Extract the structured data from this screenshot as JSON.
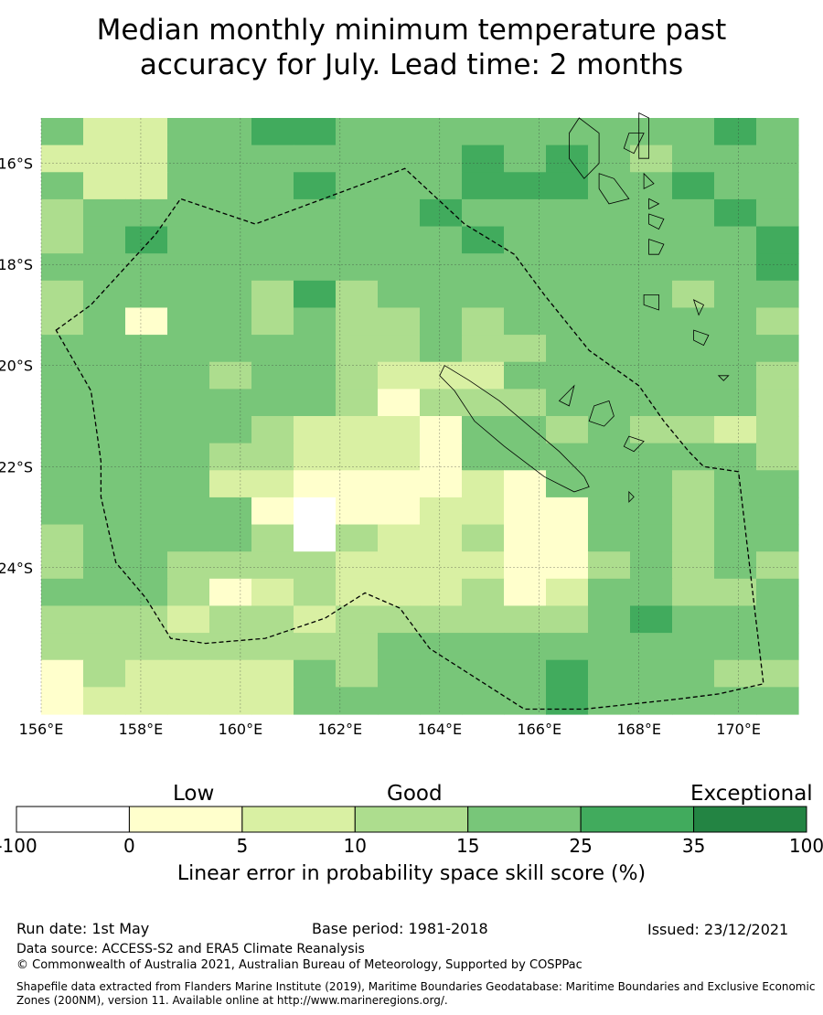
{
  "title_line1": "Median monthly minimum temperature past",
  "title_line2": "accuracy for July. Lead time: 2 months",
  "map": {
    "lon_range": [
      156,
      171.2
    ],
    "lat_range": [
      -26.9,
      -15.1
    ],
    "lon_ticks": [
      156,
      158,
      160,
      162,
      164,
      166,
      168,
      170
    ],
    "lon_tick_labels": [
      "156°E",
      "158°E",
      "160°E",
      "162°E",
      "164°E",
      "166°E",
      "168°E",
      "170°E"
    ],
    "lat_ticks": [
      -16,
      -18,
      -20,
      -22,
      -24
    ],
    "lat_tick_labels": [
      "16°S",
      "18°S",
      "20°S",
      "22°S",
      "24°S"
    ],
    "grid": true,
    "class_colors": [
      "#ffffff",
      "#ffffcc",
      "#d9f0a3",
      "#addd8e",
      "#78c679",
      "#41ab5d",
      "#238443"
    ],
    "cell_grid_note": "rows north to south, columns west to east; values are skill class index 0-6",
    "cell_classes": [
      [
        4,
        2,
        2,
        4,
        4,
        5,
        5,
        4,
        4,
        4,
        4,
        4,
        4,
        4,
        4,
        4,
        5,
        4
      ],
      [
        2,
        2,
        2,
        4,
        4,
        4,
        4,
        4,
        4,
        4,
        5,
        4,
        5,
        4,
        3,
        4,
        4,
        4
      ],
      [
        4,
        2,
        2,
        4,
        4,
        4,
        5,
        4,
        4,
        4,
        5,
        5,
        5,
        4,
        4,
        5,
        4,
        4
      ],
      [
        3,
        4,
        4,
        4,
        4,
        4,
        4,
        4,
        4,
        5,
        4,
        4,
        4,
        4,
        4,
        4,
        5,
        4
      ],
      [
        3,
        4,
        5,
        4,
        4,
        4,
        4,
        4,
        4,
        4,
        5,
        4,
        4,
        4,
        4,
        4,
        4,
        5
      ],
      [
        4,
        4,
        4,
        4,
        4,
        4,
        4,
        4,
        4,
        4,
        4,
        4,
        4,
        4,
        4,
        4,
        4,
        5
      ],
      [
        3,
        4,
        4,
        4,
        4,
        3,
        5,
        3,
        4,
        4,
        4,
        4,
        4,
        4,
        4,
        3,
        4,
        4
      ],
      [
        3,
        4,
        1,
        4,
        4,
        3,
        4,
        3,
        3,
        4,
        3,
        4,
        4,
        4,
        4,
        4,
        4,
        3
      ],
      [
        4,
        4,
        4,
        4,
        4,
        4,
        4,
        3,
        3,
        4,
        3,
        3,
        4,
        4,
        4,
        4,
        4,
        4
      ],
      [
        4,
        4,
        4,
        4,
        3,
        4,
        4,
        3,
        2,
        2,
        2,
        4,
        4,
        4,
        4,
        4,
        4,
        3
      ],
      [
        4,
        4,
        4,
        4,
        4,
        4,
        4,
        3,
        1,
        3,
        3,
        3,
        4,
        4,
        4,
        4,
        4,
        3
      ],
      [
        4,
        4,
        4,
        4,
        4,
        3,
        2,
        2,
        2,
        1,
        4,
        4,
        3,
        4,
        3,
        3,
        2,
        3
      ],
      [
        4,
        4,
        4,
        4,
        3,
        3,
        2,
        2,
        2,
        1,
        4,
        4,
        4,
        4,
        4,
        4,
        4,
        3
      ],
      [
        4,
        4,
        4,
        4,
        2,
        2,
        1,
        1,
        1,
        1,
        2,
        1,
        4,
        4,
        4,
        3,
        4,
        4
      ],
      [
        4,
        4,
        4,
        4,
        4,
        1,
        0,
        1,
        1,
        2,
        2,
        1,
        1,
        4,
        4,
        3,
        4,
        4
      ],
      [
        3,
        4,
        4,
        4,
        4,
        3,
        0,
        3,
        2,
        2,
        3,
        1,
        1,
        4,
        4,
        3,
        4,
        4
      ],
      [
        3,
        4,
        4,
        3,
        3,
        3,
        3,
        2,
        2,
        2,
        2,
        1,
        1,
        3,
        4,
        3,
        4,
        3
      ],
      [
        4,
        4,
        4,
        3,
        1,
        2,
        3,
        2,
        2,
        2,
        3,
        1,
        2,
        4,
        4,
        3,
        3,
        4
      ],
      [
        3,
        3,
        3,
        2,
        3,
        3,
        2,
        3,
        3,
        3,
        3,
        3,
        3,
        4,
        5,
        4,
        4,
        4
      ],
      [
        3,
        3,
        3,
        3,
        3,
        3,
        3,
        3,
        4,
        4,
        4,
        4,
        4,
        4,
        4,
        4,
        4,
        4
      ],
      [
        1,
        3,
        2,
        2,
        2,
        2,
        4,
        3,
        4,
        4,
        4,
        4,
        5,
        4,
        4,
        4,
        3,
        3
      ],
      [
        1,
        2,
        2,
        2,
        2,
        2,
        4,
        4,
        4,
        4,
        4,
        4,
        5,
        4,
        4,
        4,
        4,
        4
      ]
    ],
    "eez_boundary": [
      [
        156.3,
        -19.3
      ],
      [
        157,
        -18.8
      ],
      [
        158.3,
        -17.4
      ],
      [
        158.8,
        -16.7
      ],
      [
        160.3,
        -17.2
      ],
      [
        163.3,
        -16.1
      ],
      [
        164.5,
        -17.2
      ],
      [
        165.5,
        -17.8
      ],
      [
        166.1,
        -18.6
      ],
      [
        167,
        -19.7
      ],
      [
        168,
        -20.4
      ],
      [
        168.5,
        -21.1
      ],
      [
        169,
        -21.7
      ],
      [
        169.3,
        -22.0
      ],
      [
        170,
        -22.1
      ],
      [
        170.5,
        -26.3
      ],
      [
        169.6,
        -26.5
      ],
      [
        168.8,
        -26.6
      ],
      [
        166.9,
        -26.8
      ],
      [
        165.7,
        -26.8
      ],
      [
        163.8,
        -25.6
      ],
      [
        163.2,
        -24.8
      ],
      [
        162.5,
        -24.5
      ],
      [
        161.7,
        -25.0
      ],
      [
        160.5,
        -25.4
      ],
      [
        159.3,
        -25.5
      ],
      [
        158.6,
        -25.4
      ],
      [
        158.1,
        -24.6
      ],
      [
        157.5,
        -23.9
      ],
      [
        157.2,
        -22.6
      ],
      [
        157.2,
        -21.9
      ],
      [
        157,
        -20.5
      ]
    ],
    "islands": [
      [
        [
          164.1,
          -20.0
        ],
        [
          164.6,
          -20.3
        ],
        [
          165.2,
          -20.7
        ],
        [
          165.8,
          -21.2
        ],
        [
          166.4,
          -21.7
        ],
        [
          166.9,
          -22.2
        ],
        [
          167.0,
          -22.4
        ],
        [
          166.7,
          -22.5
        ],
        [
          166.1,
          -22.2
        ],
        [
          165.3,
          -21.6
        ],
        [
          164.7,
          -21.1
        ],
        [
          164.3,
          -20.5
        ],
        [
          164.0,
          -20.2
        ]
      ],
      [
        [
          167.1,
          -20.8
        ],
        [
          167.4,
          -20.7
        ],
        [
          167.5,
          -21.0
        ],
        [
          167.3,
          -21.2
        ],
        [
          167.0,
          -21.1
        ]
      ],
      [
        [
          166.6,
          -20.5
        ],
        [
          166.7,
          -20.4
        ],
        [
          166.6,
          -20.8
        ],
        [
          166.4,
          -20.7
        ]
      ],
      [
        [
          167.8,
          -21.4
        ],
        [
          168.1,
          -21.5
        ],
        [
          167.9,
          -21.7
        ],
        [
          167.7,
          -21.6
        ]
      ],
      [
        [
          166.8,
          -15.1
        ],
        [
          167.2,
          -15.4
        ],
        [
          167.2,
          -16.0
        ],
        [
          166.9,
          -16.3
        ],
        [
          166.6,
          -15.9
        ],
        [
          166.6,
          -15.4
        ]
      ],
      [
        [
          167.8,
          -15.4
        ],
        [
          168.1,
          -15.4
        ],
        [
          167.9,
          -15.8
        ],
        [
          167.7,
          -15.7
        ]
      ],
      [
        [
          168.0,
          -15.0
        ],
        [
          168.2,
          -15.1
        ],
        [
          168.2,
          -15.9
        ],
        [
          168.0,
          -15.9
        ]
      ],
      [
        [
          167.2,
          -16.2
        ],
        [
          167.5,
          -16.3
        ],
        [
          167.8,
          -16.7
        ],
        [
          167.4,
          -16.8
        ],
        [
          167.2,
          -16.5
        ]
      ],
      [
        [
          168.1,
          -16.2
        ],
        [
          168.3,
          -16.4
        ],
        [
          168.1,
          -16.5
        ]
      ],
      [
        [
          168.2,
          -16.7
        ],
        [
          168.4,
          -16.8
        ],
        [
          168.2,
          -16.9
        ]
      ],
      [
        [
          168.2,
          -17.0
        ],
        [
          168.5,
          -17.1
        ],
        [
          168.4,
          -17.3
        ],
        [
          168.2,
          -17.2
        ]
      ],
      [
        [
          168.2,
          -17.5
        ],
        [
          168.5,
          -17.6
        ],
        [
          168.4,
          -17.8
        ],
        [
          168.2,
          -17.8
        ]
      ],
      [
        [
          168.1,
          -18.6
        ],
        [
          168.4,
          -18.6
        ],
        [
          168.4,
          -18.9
        ],
        [
          168.1,
          -18.8
        ]
      ],
      [
        [
          169.1,
          -19.3
        ],
        [
          169.4,
          -19.4
        ],
        [
          169.3,
          -19.6
        ],
        [
          169.1,
          -19.5
        ]
      ],
      [
        [
          169.1,
          -18.7
        ],
        [
          169.3,
          -18.8
        ],
        [
          169.2,
          -19.0
        ]
      ],
      [
        [
          169.6,
          -20.2
        ],
        [
          169.8,
          -20.2
        ],
        [
          169.7,
          -20.3
        ]
      ],
      [
        [
          167.8,
          -22.5
        ],
        [
          167.9,
          -22.6
        ],
        [
          167.8,
          -22.7
        ]
      ]
    ]
  },
  "colorbar": {
    "boundaries": [
      -100,
      0,
      5,
      10,
      15,
      25,
      35,
      100
    ],
    "boundary_labels": [
      "-100",
      "0",
      "5",
      "10",
      "15",
      "25",
      "35",
      "100"
    ],
    "colors": [
      "#ffffff",
      "#ffffcc",
      "#d9f0a3",
      "#addd8e",
      "#78c679",
      "#41ab5d",
      "#238443"
    ],
    "category_labels": [
      "Low",
      "Good",
      "Exceptional"
    ],
    "caption": "Linear error in probability space skill score (%)"
  },
  "footer": {
    "run_date": "Run date: 1st May",
    "base_period": "Base period: 1981-2018",
    "issued": "Issued: 23/12/2021",
    "data_source": "Data source: ACCESS-S2 and ERA5 Climate Reanalysis",
    "copyright": "© Commonwealth of Australia 2021, Australian Bureau of Meteorology, Supported by COSPPac",
    "shapefile_note": "Shapefile data extracted from Flanders Marine Institute (2019), Maritime Boundaries Geodatabase: Maritime Boundaries and Exclusive Economic Zones (200NM), version 11. Available online at http://www.marineregions.org/."
  }
}
